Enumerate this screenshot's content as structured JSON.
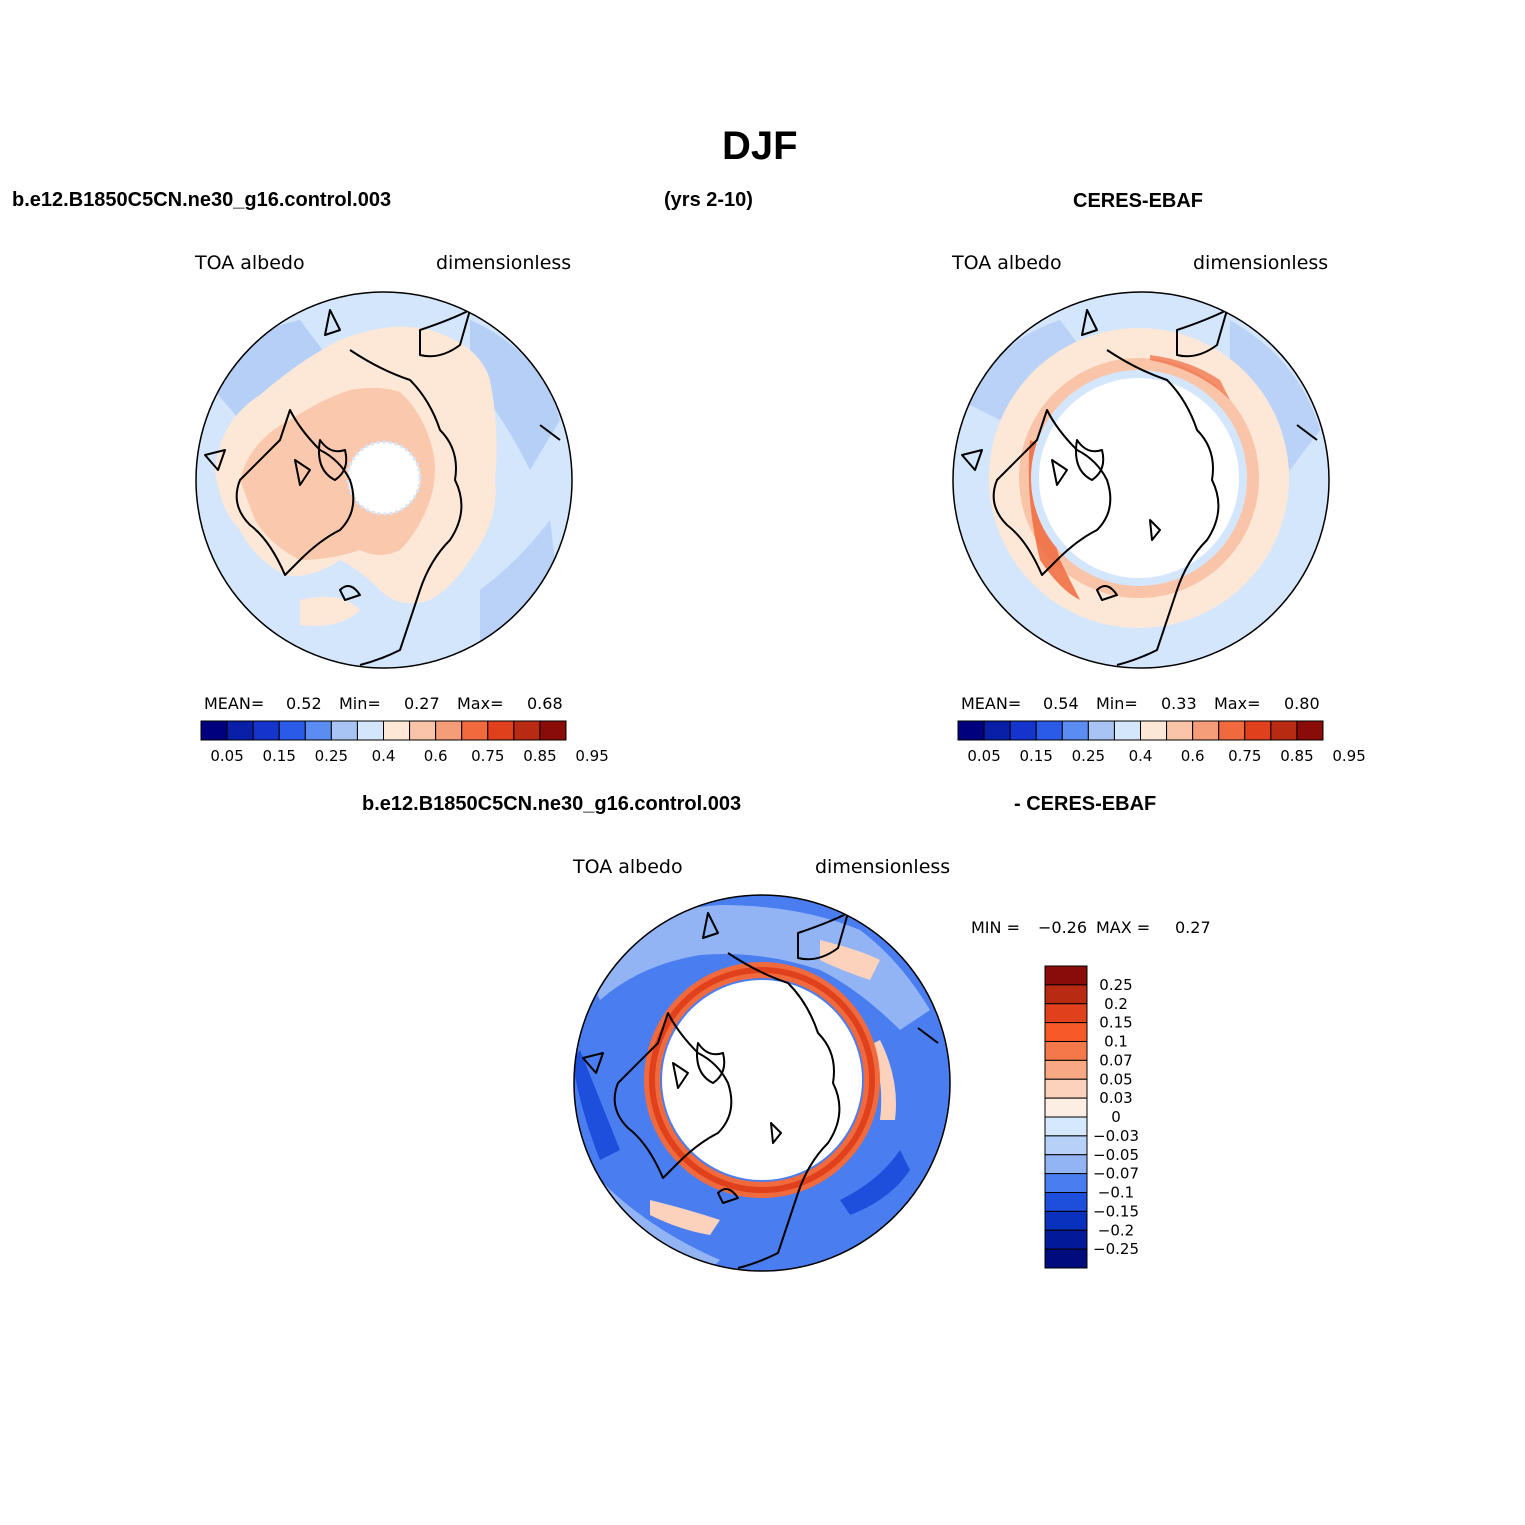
{
  "season_title": "DJF",
  "panels": [
    {
      "id": "model",
      "header_left": "b.e12.B1850C5CN.ne30_g16.control.003",
      "header_mid": "(yrs 2-10)",
      "variable": "TOA  albedo",
      "units": "dimensionless",
      "stats": {
        "mean_label": "MEAN=",
        "mean": "0.52",
        "min_label": "Min=",
        "min": "0.27",
        "max_label": "Max=",
        "max": "0.68"
      }
    },
    {
      "id": "obs",
      "header_right": "CERES-EBAF",
      "variable": "TOA  albedo",
      "units": "dimensionless",
      "stats": {
        "mean_label": "MEAN=",
        "mean": "0.54",
        "min_label": "Min=",
        "min": "0.33",
        "max_label": "Max=",
        "max": "0.80"
      }
    },
    {
      "id": "diff",
      "header_left": "b.e12.B1850C5CN.ne30_g16.control.003",
      "header_right": "- CERES-EBAF",
      "variable": "TOA  albedo",
      "units": "dimensionless",
      "stats": {
        "min_label": "MIN =",
        "min": "−0.26",
        "max_label": "MAX =",
        "max": "0.27"
      }
    }
  ],
  "colorbar_abs": {
    "colors": [
      "#00007f",
      "#0a1fa8",
      "#1434cc",
      "#2a5ae8",
      "#5a8cf2",
      "#a8c4f4",
      "#d4e6fc",
      "#fde8d8",
      "#f9c4a8",
      "#f59c78",
      "#f06a3e",
      "#e0401c",
      "#b82a12",
      "#8a0c08"
    ],
    "tick_labels": [
      "0.05",
      "0.15",
      "0.25",
      "0.4",
      "0.6",
      "0.75",
      "0.85",
      "0.95"
    ]
  },
  "colorbar_diff": {
    "colors": [
      "#8a0c08",
      "#b82a12",
      "#e0401c",
      "#f75a28",
      "#f5784a",
      "#f8a882",
      "#fcd2bc",
      "#fdeee4",
      "#d6e8fc",
      "#b6d0f8",
      "#92b4f4",
      "#4a7ef0",
      "#1e4edc",
      "#0a30be",
      "#001a98",
      "#000c7c"
    ],
    "tick_labels": [
      "0.25",
      "0.2",
      "0.15",
      "0.1",
      "0.07",
      "0.05",
      "0.03",
      "0",
      "−0.03",
      "−0.05",
      "−0.07",
      "−0.1",
      "−0.15",
      "−0.2",
      "−0.25"
    ]
  }
}
